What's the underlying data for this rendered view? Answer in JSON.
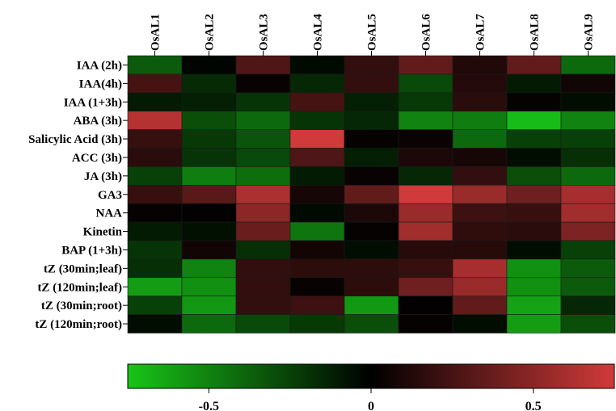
{
  "chart_data": {
    "type": "heatmap",
    "columns": [
      "OsAL1",
      "OsAL2",
      "OsAL3",
      "OsAL4",
      "OsAL5",
      "OsAL6",
      "OsAL7",
      "OsAL8",
      "OsAL9"
    ],
    "rows": [
      "IAA (2h)",
      "IAA(4h)",
      "IAA (1+3h)",
      "ABA (3h)",
      "Salicylic Acid (3h)",
      "ACC (3h)",
      "JA (3h)",
      "GA3",
      "NAA",
      "Kinetin",
      "BAP (1+3h)",
      "tZ (30min;leaf)",
      "tZ (120min;leaf)",
      "tZ (30min;root)",
      "tZ (120min;root)"
    ],
    "values": [
      [
        -0.35,
        -0.02,
        0.28,
        -0.04,
        0.18,
        0.35,
        0.12,
        0.35,
        -0.4
      ],
      [
        0.25,
        -0.16,
        0.03,
        -0.15,
        0.18,
        -0.28,
        0.13,
        -0.1,
        0.06
      ],
      [
        -0.1,
        -0.12,
        -0.2,
        0.25,
        -0.12,
        -0.22,
        0.15,
        0.02,
        -0.05
      ],
      [
        0.65,
        -0.3,
        -0.4,
        -0.2,
        -0.15,
        -0.5,
        -0.48,
        -0.72,
        -0.5
      ],
      [
        0.2,
        -0.22,
        -0.32,
        0.75,
        0.02,
        0.04,
        -0.4,
        -0.25,
        -0.25
      ],
      [
        0.15,
        -0.2,
        -0.28,
        0.28,
        -0.12,
        0.1,
        0.08,
        -0.05,
        -0.18
      ],
      [
        -0.25,
        -0.48,
        -0.42,
        -0.1,
        0.03,
        -0.15,
        0.18,
        -0.3,
        -0.4
      ],
      [
        0.2,
        0.32,
        0.62,
        0.08,
        0.35,
        0.75,
        0.55,
        0.4,
        0.6
      ],
      [
        0.02,
        0.01,
        0.5,
        -0.04,
        0.1,
        0.55,
        0.22,
        0.2,
        0.58
      ],
      [
        -0.1,
        -0.06,
        0.38,
        -0.45,
        0.02,
        0.58,
        0.17,
        0.15,
        0.45
      ],
      [
        -0.2,
        0.06,
        -0.18,
        0.07,
        -0.05,
        0.14,
        0.14,
        -0.05,
        -0.25
      ],
      [
        -0.18,
        -0.5,
        0.18,
        0.16,
        0.16,
        0.2,
        0.6,
        -0.55,
        -0.35
      ],
      [
        -0.6,
        -0.55,
        0.18,
        0.03,
        0.16,
        0.4,
        0.55,
        -0.55,
        -0.35
      ],
      [
        -0.25,
        -0.58,
        0.18,
        0.22,
        -0.58,
        0.01,
        0.35,
        -0.62,
        -0.15
      ],
      [
        -0.05,
        -0.4,
        -0.28,
        -0.22,
        -0.3,
        0.02,
        -0.05,
        -0.6,
        -0.3
      ]
    ],
    "colorbar": {
      "range": [
        -0.75,
        0.75
      ],
      "ticks": [
        -0.5,
        0,
        0.5
      ],
      "tick_labels": [
        "-0.5",
        "0",
        "0.5"
      ],
      "colors": {
        "low": "#19c419",
        "mid": "#000000",
        "high": "#d13a3a"
      }
    }
  }
}
